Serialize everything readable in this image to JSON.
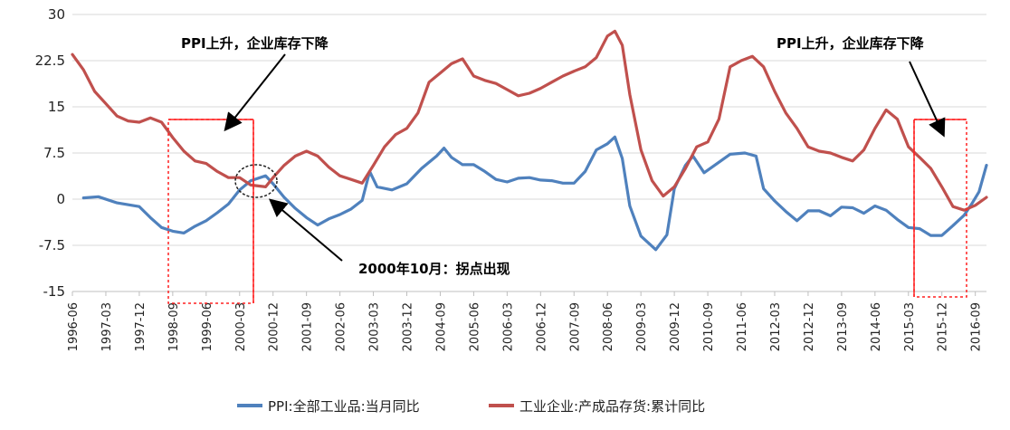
{
  "chart_data": {
    "type": "line",
    "ylim": [
      -15,
      30
    ],
    "yticks": [
      "30",
      "22.5",
      "15",
      "7.5",
      "0",
      "-7.5",
      "-15"
    ],
    "ytick_values": [
      30,
      22.5,
      15,
      7.5,
      0,
      -7.5,
      -15
    ],
    "xlim": [
      "1996-06",
      "2016-12"
    ],
    "xticks": [
      "1996-06",
      "1997-03",
      "1997-12",
      "1998-09",
      "1999-06",
      "2000-03",
      "2000-12",
      "2001-09",
      "2002-06",
      "2003-03",
      "2003-12",
      "2004-09",
      "2005-06",
      "2006-03",
      "2006-12",
      "2007-09",
      "2008-06",
      "2009-03",
      "2009-12",
      "2010-09",
      "2011-06",
      "2012-03",
      "2012-12",
      "2013-09",
      "2014-06",
      "2015-03",
      "2015-12",
      "2016-09"
    ],
    "grid": "horizontal",
    "legend_position": "bottom",
    "series": [
      {
        "name": "PPI:全部工业品:当月同比",
        "color": "#4f81bd",
        "points": [
          [
            "1996-09",
            0.2
          ],
          [
            "1997-01",
            0.4
          ],
          [
            "1997-06",
            -0.6
          ],
          [
            "1997-12",
            -1.2
          ],
          [
            "1998-03",
            -3
          ],
          [
            "1998-06",
            -4.6
          ],
          [
            "1998-09",
            -5.2
          ],
          [
            "1998-12",
            -5.5
          ],
          [
            "1999-03",
            -4.4
          ],
          [
            "1999-06",
            -3.5
          ],
          [
            "1999-09",
            -2.2
          ],
          [
            "1999-12",
            -0.8
          ],
          [
            "2000-03",
            1.5
          ],
          [
            "2000-06",
            3
          ],
          [
            "2000-10",
            3.8
          ],
          [
            "2000-12",
            2.5
          ],
          [
            "2001-03",
            0.3
          ],
          [
            "2001-06",
            -1.5
          ],
          [
            "2001-09",
            -3
          ],
          [
            "2001-12",
            -4.2
          ],
          [
            "2002-03",
            -3.2
          ],
          [
            "2002-06",
            -2.5
          ],
          [
            "2002-09",
            -1.6
          ],
          [
            "2002-12",
            -0.2
          ],
          [
            "2003-02",
            4.5
          ],
          [
            "2003-04",
            2
          ],
          [
            "2003-08",
            1.5
          ],
          [
            "2003-12",
            2.5
          ],
          [
            "2004-04",
            5
          ],
          [
            "2004-08",
            7
          ],
          [
            "2004-10",
            8.3
          ],
          [
            "2004-12",
            6.8
          ],
          [
            "2005-03",
            5.6
          ],
          [
            "2005-06",
            5.6
          ],
          [
            "2005-09",
            4.5
          ],
          [
            "2005-12",
            3.2
          ],
          [
            "2006-03",
            2.8
          ],
          [
            "2006-06",
            3.4
          ],
          [
            "2006-09",
            3.5
          ],
          [
            "2006-12",
            3.1
          ],
          [
            "2007-03",
            3
          ],
          [
            "2007-06",
            2.6
          ],
          [
            "2007-09",
            2.6
          ],
          [
            "2007-12",
            4.5
          ],
          [
            "2008-03",
            8
          ],
          [
            "2008-06",
            9
          ],
          [
            "2008-08",
            10.1
          ],
          [
            "2008-10",
            6.6
          ],
          [
            "2008-12",
            -1.1
          ],
          [
            "2009-03",
            -6
          ],
          [
            "2009-07",
            -8.2
          ],
          [
            "2009-10",
            -5.8
          ],
          [
            "2009-12",
            1.7
          ],
          [
            "2010-03",
            5.5
          ],
          [
            "2010-05",
            7
          ],
          [
            "2010-08",
            4.3
          ],
          [
            "2010-12",
            6
          ],
          [
            "2011-03",
            7.3
          ],
          [
            "2011-07",
            7.5
          ],
          [
            "2011-10",
            7
          ],
          [
            "2011-12",
            1.7
          ],
          [
            "2012-03",
            -0.3
          ],
          [
            "2012-06",
            -2
          ],
          [
            "2012-09",
            -3.5
          ],
          [
            "2012-12",
            -1.9
          ],
          [
            "2013-03",
            -1.9
          ],
          [
            "2013-06",
            -2.7
          ],
          [
            "2013-09",
            -1.3
          ],
          [
            "2013-12",
            -1.4
          ],
          [
            "2014-03",
            -2.3
          ],
          [
            "2014-06",
            -1.1
          ],
          [
            "2014-09",
            -1.8
          ],
          [
            "2014-12",
            -3.3
          ],
          [
            "2015-03",
            -4.6
          ],
          [
            "2015-06",
            -4.8
          ],
          [
            "2015-09",
            -5.9
          ],
          [
            "2015-12",
            -5.9
          ],
          [
            "2016-03",
            -4.3
          ],
          [
            "2016-06",
            -2.6
          ],
          [
            "2016-08",
            -0.8
          ],
          [
            "2016-10",
            1.2
          ],
          [
            "2016-12",
            5.5
          ]
        ]
      },
      {
        "name": "工业企业:产成品存货:累计同比",
        "color": "#c0504d",
        "points": [
          [
            "1996-06",
            23.5
          ],
          [
            "1996-09",
            21
          ],
          [
            "1996-12",
            17.5
          ],
          [
            "1997-03",
            15.5
          ],
          [
            "1997-06",
            13.5
          ],
          [
            "1997-09",
            12.7
          ],
          [
            "1997-12",
            12.5
          ],
          [
            "1998-03",
            13.2
          ],
          [
            "1998-06",
            12.5
          ],
          [
            "1998-09",
            10
          ],
          [
            "1998-12",
            7.8
          ],
          [
            "1999-03",
            6.2
          ],
          [
            "1999-06",
            5.8
          ],
          [
            "1999-09",
            4.5
          ],
          [
            "1999-12",
            3.5
          ],
          [
            "2000-03",
            3.5
          ],
          [
            "2000-06",
            2.3
          ],
          [
            "2000-10",
            2
          ],
          [
            "2000-12",
            3.5
          ],
          [
            "2001-03",
            5.5
          ],
          [
            "2001-06",
            7
          ],
          [
            "2001-09",
            7.8
          ],
          [
            "2001-12",
            7
          ],
          [
            "2002-03",
            5.2
          ],
          [
            "2002-06",
            3.8
          ],
          [
            "2002-09",
            3.2
          ],
          [
            "2002-12",
            2.6
          ],
          [
            "2003-03",
            5.5
          ],
          [
            "2003-06",
            8.5
          ],
          [
            "2003-09",
            10.5
          ],
          [
            "2003-12",
            11.5
          ],
          [
            "2004-03",
            14
          ],
          [
            "2004-06",
            19
          ],
          [
            "2004-09",
            20.5
          ],
          [
            "2004-12",
            22
          ],
          [
            "2005-03",
            22.8
          ],
          [
            "2005-06",
            20
          ],
          [
            "2005-09",
            19.3
          ],
          [
            "2005-12",
            18.8
          ],
          [
            "2006-03",
            17.8
          ],
          [
            "2006-06",
            16.8
          ],
          [
            "2006-09",
            17.2
          ],
          [
            "2006-12",
            18
          ],
          [
            "2007-03",
            19
          ],
          [
            "2007-06",
            20
          ],
          [
            "2007-09",
            20.8
          ],
          [
            "2007-12",
            21.5
          ],
          [
            "2008-03",
            23
          ],
          [
            "2008-06",
            26.5
          ],
          [
            "2008-08",
            27.3
          ],
          [
            "2008-10",
            25
          ],
          [
            "2008-12",
            17
          ],
          [
            "2009-03",
            8
          ],
          [
            "2009-06",
            3
          ],
          [
            "2009-09",
            0.5
          ],
          [
            "2009-12",
            2
          ],
          [
            "2010-03",
            5
          ],
          [
            "2010-06",
            8.5
          ],
          [
            "2010-09",
            9.3
          ],
          [
            "2010-12",
            13
          ],
          [
            "2011-03",
            21.5
          ],
          [
            "2011-06",
            22.5
          ],
          [
            "2011-09",
            23.2
          ],
          [
            "2011-12",
            21.5
          ],
          [
            "2012-03",
            17.5
          ],
          [
            "2012-06",
            14
          ],
          [
            "2012-09",
            11.5
          ],
          [
            "2012-12",
            8.5
          ],
          [
            "2013-03",
            7.8
          ],
          [
            "2013-06",
            7.5
          ],
          [
            "2013-09",
            6.8
          ],
          [
            "2013-12",
            6.2
          ],
          [
            "2014-03",
            8
          ],
          [
            "2014-06",
            11.5
          ],
          [
            "2014-09",
            14.5
          ],
          [
            "2014-12",
            13
          ],
          [
            "2015-03",
            8.5
          ],
          [
            "2015-06",
            6.8
          ],
          [
            "2015-09",
            5
          ],
          [
            "2015-12",
            2
          ],
          [
            "2016-03",
            -1.2
          ],
          [
            "2016-06",
            -1.8
          ],
          [
            "2016-09",
            -1
          ],
          [
            "2016-12",
            0.3
          ]
        ]
      }
    ],
    "annotations": [
      {
        "text": "PPI上升，企业库存下降"
      },
      {
        "text": "PPI上升，企业库存下降"
      },
      {
        "text": "2000年10月：拐点出现"
      }
    ]
  }
}
